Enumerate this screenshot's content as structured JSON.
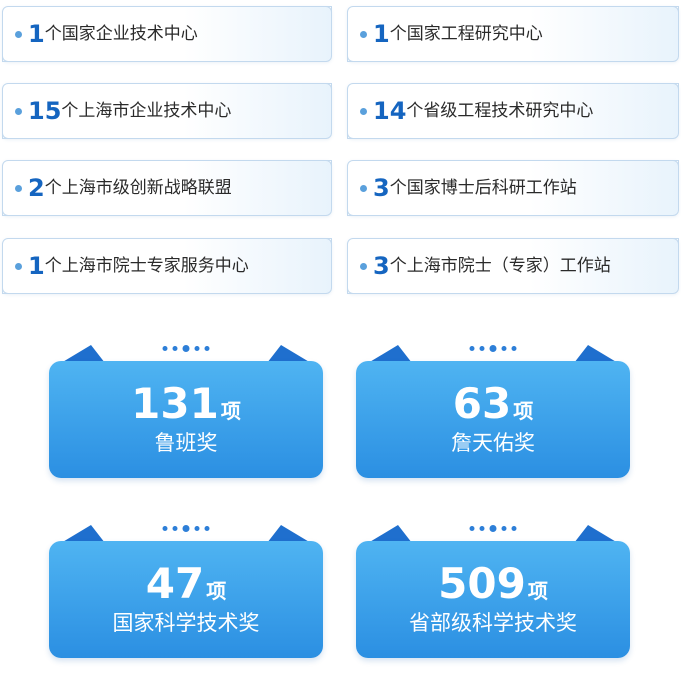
{
  "centers": [
    {
      "num": "1",
      "text": "个国家企业技术中心"
    },
    {
      "num": "1",
      "text": "个国家工程研究中心"
    },
    {
      "num": "15",
      "text": "个上海市企业技术中心"
    },
    {
      "num": "14",
      "text": "个省级工程技术研究中心"
    },
    {
      "num": "2",
      "text": "个上海市级创新战略联盟"
    },
    {
      "num": "3",
      "text": "个国家博士后科研工作站"
    },
    {
      "num": "1",
      "text": "个上海市院士专家服务中心"
    },
    {
      "num": "3",
      "text": "个上海市院士（专家）工作站"
    }
  ],
  "awards": [
    {
      "value": "131",
      "unit": "项",
      "name": "鲁班奖"
    },
    {
      "value": "63",
      "unit": "项",
      "name": "詹天佑奖"
    },
    {
      "value": "47",
      "unit": "项",
      "name": "国家科学技术奖"
    },
    {
      "value": "509",
      "unit": "项",
      "name": "省部级科学技术奖"
    }
  ],
  "colors": {
    "number_blue": "#1565c0",
    "card_top": "#4fb4f2",
    "card_bottom": "#2b8fe2",
    "pill_border": "#c3d9ee"
  }
}
